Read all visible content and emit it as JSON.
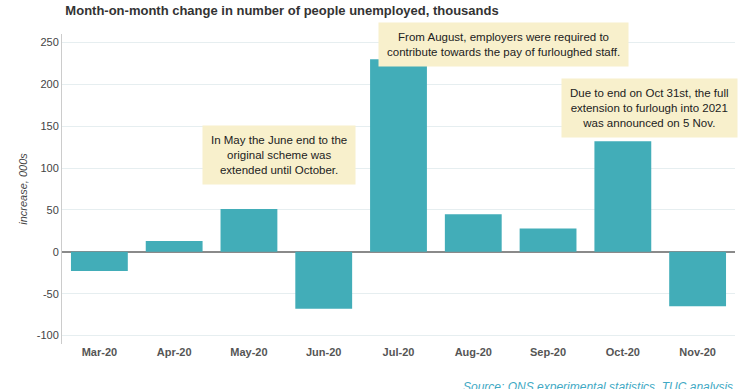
{
  "chart_data": {
    "type": "bar",
    "title": "Month-on-month change in number of people unemployed, thousands",
    "y_label": "increase, 000s",
    "categories": [
      "Mar-20",
      "Apr-20",
      "May-20",
      "Jun-20",
      "Jul-20",
      "Aug-20",
      "Sep-20",
      "Oct-20",
      "Nov-20"
    ],
    "values": [
      -23,
      13,
      51,
      -68,
      230,
      45,
      28,
      132,
      -65
    ],
    "color": "#42adb8",
    "ylim": [
      -110,
      260
    ],
    "yticks": [
      -100,
      -50,
      0,
      50,
      100,
      150,
      200,
      250
    ],
    "grid": true,
    "annotations": [
      "In May the June end to the\noriginal scheme was\nextended until October.",
      "From August, employers were required to\ncontribute towards the pay of furloughed staff.",
      "Due to end on Oct 31st, the full\nextension to furlough into 2021\nwas announced on 5 Nov."
    ],
    "source": "Source: ONS experimental statistics, TUC analysis"
  }
}
